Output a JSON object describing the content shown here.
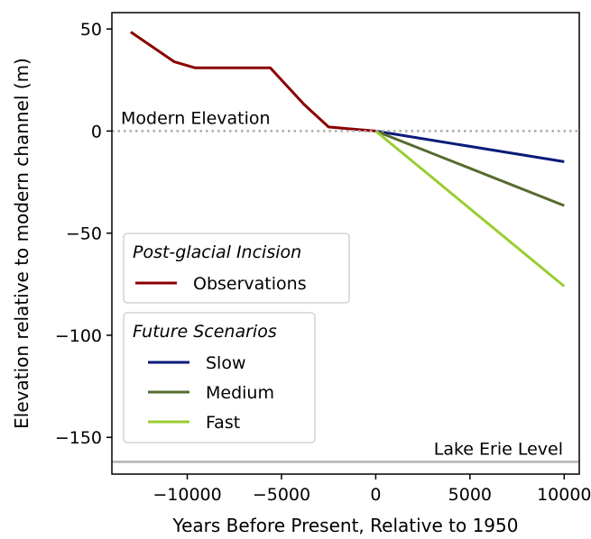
{
  "chart_data": {
    "type": "line",
    "xlabel": "Years Before Present, Relative to 1950",
    "ylabel": "Elevation relative to modern channel (m)",
    "xlim": [
      -14000,
      10800
    ],
    "ylim": [
      -168,
      58
    ],
    "x_ticks": [
      -10000,
      -5000,
      0,
      5000,
      10000
    ],
    "x_tick_labels": [
      "−10000",
      "−5000",
      "0",
      "5000",
      "10000"
    ],
    "y_ticks": [
      50,
      0,
      -50,
      -100,
      -150
    ],
    "y_tick_labels": [
      "50",
      "0",
      "−50",
      "−100",
      "−150"
    ],
    "grid": false,
    "reference_lines": [
      {
        "label": "Modern Elevation",
        "y": 0,
        "style": "dotted",
        "color": "#aaaaaa"
      },
      {
        "label": "Lake Erie Level",
        "y": -162,
        "style": "solid",
        "color": "#b4b4b4"
      }
    ],
    "legends": [
      {
        "title": "Post-glacial Incision",
        "placement": "center-left",
        "entries": [
          "Observations"
        ]
      },
      {
        "title": "Future Scenarios",
        "placement": "lower-left",
        "entries": [
          "Slow",
          "Medium",
          "Fast"
        ]
      }
    ],
    "series": [
      {
        "name": "Observations",
        "color": "#8b0000",
        "x": [
          -13000,
          -10700,
          -9600,
          -5600,
          -3800,
          -2500,
          0
        ],
        "y": [
          48.5,
          34,
          31,
          31,
          13,
          2,
          0
        ]
      },
      {
        "name": "Slow",
        "color": "#0c1a7a",
        "x": [
          0,
          10000
        ],
        "y": [
          0,
          -15
        ]
      },
      {
        "name": "Medium",
        "color": "#556b2f",
        "x": [
          0,
          10000
        ],
        "y": [
          0,
          -36.5
        ]
      },
      {
        "name": "Fast",
        "color": "#9acd32",
        "x": [
          0,
          10000
        ],
        "y": [
          0,
          -76
        ]
      }
    ]
  }
}
